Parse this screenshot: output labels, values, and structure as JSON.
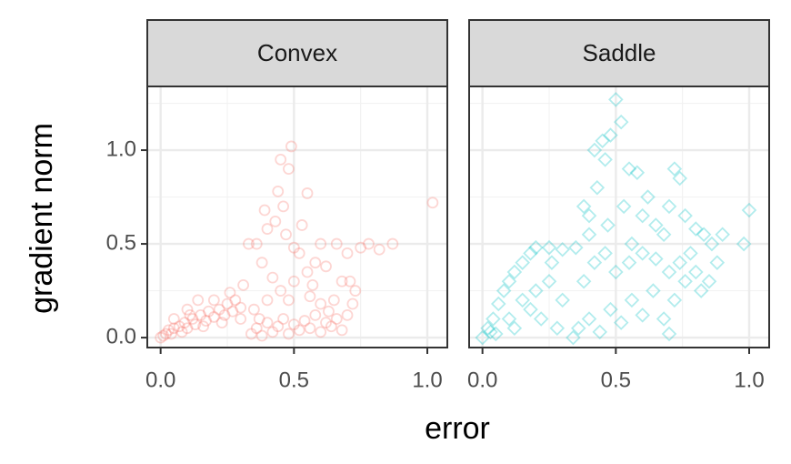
{
  "chart_data": {
    "type": "scatter",
    "x_label": "error",
    "y_label": "gradient norm",
    "xlim": [
      -0.05,
      1.075
    ],
    "ylim": [
      -0.053,
      1.34
    ],
    "xticks": [
      {
        "value": 0,
        "label": "0.0"
      },
      0.5,
      {
        "value": 1,
        "label": "1.0"
      }
    ],
    "yticks": [
      {
        "value": 0,
        "label": "0.0"
      },
      0.5,
      {
        "value": 1,
        "label": "1.0"
      }
    ],
    "x_minor_ticks": [
      0.25,
      0.75
    ],
    "y_minor_ticks": [
      0.25,
      0.75,
      1.25
    ],
    "grid": true,
    "panels": [
      {
        "title": "Convex",
        "color": "#F8766D",
        "marker": "circle",
        "x": [
          0,
          0.01,
          0.02,
          0.03,
          0.05,
          0.07,
          0.09,
          0.1,
          0.12,
          0.13,
          0.15,
          0.17,
          0.18,
          0.2,
          0.22,
          0.24,
          0.25,
          0.27,
          0.28,
          0.3,
          0.05,
          0.1,
          0.14,
          0.2,
          0.26,
          0.31,
          0.08,
          0.16,
          0.23,
          0.3,
          0.04,
          0.11,
          0.34,
          0.36,
          0.38,
          0.4,
          0.42,
          0.44,
          0.46,
          0.48,
          0.5,
          0.52,
          0.54,
          0.56,
          0.58,
          0.6,
          0.62,
          0.64,
          0.66,
          0.68,
          0.7,
          0.72,
          0.73,
          0.71,
          0.35,
          0.4,
          0.45,
          0.5,
          0.55,
          0.58,
          0.52,
          0.48,
          0.56,
          0.6,
          0.65,
          0.42,
          0.38,
          0.36,
          0.4,
          0.43,
          0.47,
          0.5,
          0.53,
          0.46,
          0.39,
          0.44,
          0.45,
          0.49,
          0.48,
          0.55,
          0.6,
          0.66,
          0.7,
          0.75,
          0.78,
          0.82,
          0.87,
          1.02,
          0.62,
          0.68,
          0.57,
          0.33,
          0.37,
          0.63
        ],
        "y": [
          0,
          0.01,
          0.02,
          0.04,
          0.05,
          0.06,
          0.08,
          0.05,
          0.1,
          0.07,
          0.12,
          0.09,
          0.14,
          0.11,
          0.15,
          0.12,
          0.18,
          0.14,
          0.2,
          0.16,
          0.1,
          0.15,
          0.2,
          0.2,
          0.24,
          0.28,
          0.03,
          0.06,
          0.08,
          0.1,
          0.02,
          0.12,
          0.02,
          0.05,
          0.01,
          0.08,
          0.03,
          0.06,
          0.1,
          0.02,
          0.07,
          0.04,
          0.09,
          0.05,
          0.12,
          0.03,
          0.08,
          0.06,
          0.1,
          0.04,
          0.12,
          0.18,
          0.25,
          0.3,
          0.15,
          0.2,
          0.25,
          0.3,
          0.35,
          0.4,
          0.45,
          0.2,
          0.22,
          0.18,
          0.2,
          0.32,
          0.4,
          0.5,
          0.58,
          0.62,
          0.55,
          0.48,
          0.6,
          0.7,
          0.68,
          0.78,
          0.95,
          1.02,
          0.9,
          0.77,
          0.5,
          0.5,
          0.45,
          0.48,
          0.5,
          0.47,
          0.5,
          0.72,
          0.38,
          0.3,
          0.28,
          0.5,
          0.1,
          0.14
        ]
      },
      {
        "title": "Saddle",
        "color": "#00BFC4",
        "marker": "diamond",
        "x": [
          0,
          0.02,
          0.04,
          0.06,
          0.08,
          0.1,
          0.12,
          0.15,
          0.18,
          0.2,
          0.25,
          0.3,
          0.05,
          0.1,
          0.15,
          0.2,
          0.25,
          0.3,
          0.12,
          0.22,
          0.28,
          0.03,
          0.18,
          0.26,
          0.34,
          0.36,
          0.4,
          0.44,
          0.48,
          0.52,
          0.56,
          0.6,
          0.64,
          0.68,
          0.7,
          0.38,
          0.42,
          0.46,
          0.5,
          0.55,
          0.6,
          0.65,
          0.7,
          0.74,
          0.78,
          0.8,
          0.82,
          0.85,
          0.88,
          0.86,
          0.9,
          0.98,
          1.0,
          0.76,
          0.72,
          0.5,
          0.52,
          0.45,
          0.48,
          0.42,
          0.46,
          0.55,
          0.58,
          0.62,
          0.72,
          0.74,
          0.7,
          0.38,
          0.4,
          0.43,
          0.47,
          0.53,
          0.56,
          0.65,
          0.76,
          0.8,
          0.83,
          0.35,
          0.4,
          0.6,
          0.68
        ],
        "y": [
          0,
          0.05,
          0.1,
          0.18,
          0.25,
          0.3,
          0.35,
          0.4,
          0.45,
          0.48,
          0.48,
          0.47,
          0.02,
          0.1,
          0.2,
          0.25,
          0.3,
          0.2,
          0.05,
          0.1,
          0.05,
          0.03,
          0.15,
          0.4,
          0,
          0.05,
          0.1,
          0.03,
          0.15,
          0.08,
          0.2,
          0.12,
          0.25,
          0.1,
          0.02,
          0.3,
          0.4,
          0.45,
          0.35,
          0.4,
          0.45,
          0.42,
          0.35,
          0.4,
          0.45,
          0.35,
          0.25,
          0.3,
          0.4,
          0.5,
          0.55,
          0.5,
          0.68,
          0.3,
          0.2,
          1.27,
          1.15,
          1.05,
          1.08,
          1,
          0.95,
          0.9,
          0.88,
          0.75,
          0.9,
          0.85,
          0.7,
          0.7,
          0.65,
          0.8,
          0.6,
          0.7,
          0.5,
          0.6,
          0.65,
          0.58,
          0.55,
          0.48,
          0.55,
          0.65,
          0.55
        ]
      }
    ]
  }
}
